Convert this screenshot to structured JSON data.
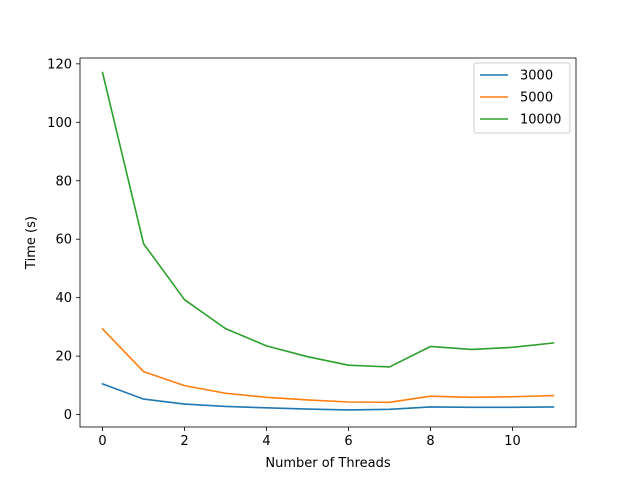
{
  "chart_data": {
    "type": "line",
    "title": "",
    "xlabel": "Number of Threads",
    "ylabel": "Time (s)",
    "xlim": [
      -0.55,
      11.55
    ],
    "ylim": [
      -4.25,
      122.0
    ],
    "xticks": [
      0,
      2,
      4,
      6,
      8,
      10
    ],
    "yticks": [
      0,
      20,
      40,
      60,
      80,
      100,
      120
    ],
    "grid": false,
    "legend_position": "top-right",
    "x": [
      0,
      1,
      2,
      3,
      4,
      5,
      6,
      7,
      8,
      9,
      10,
      11
    ],
    "series": [
      {
        "name": "3000",
        "color": "#1f77b4",
        "values": [
          10.5,
          5.3,
          3.6,
          2.8,
          2.3,
          1.9,
          1.6,
          1.8,
          2.6,
          2.5,
          2.5,
          2.6
        ]
      },
      {
        "name": "5000",
        "color": "#ff7f0e",
        "values": [
          29.3,
          14.7,
          9.9,
          7.3,
          5.9,
          5.0,
          4.3,
          4.2,
          6.3,
          5.9,
          6.1,
          6.5
        ]
      },
      {
        "name": "10000",
        "color": "#2ca02c",
        "values": [
          117.0,
          58.5,
          39.3,
          29.4,
          23.5,
          19.8,
          16.9,
          16.3,
          23.3,
          22.3,
          23.0,
          24.5
        ]
      }
    ]
  }
}
